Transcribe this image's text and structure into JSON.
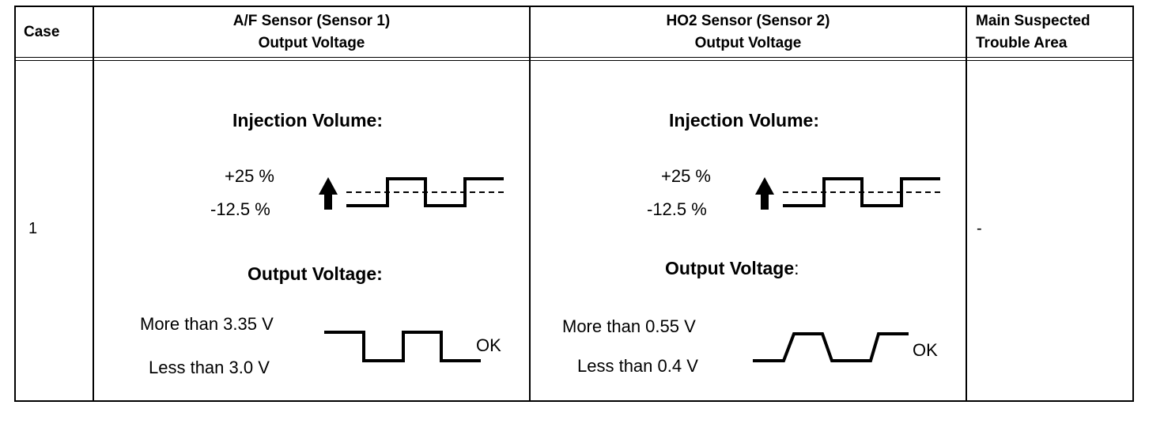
{
  "table": {
    "headers": {
      "case": "Case",
      "af_line1": "A/F Sensor (Sensor 1)",
      "af_line2": "Output Voltage",
      "ho2_line1": "HO2 Sensor (Sensor 2)",
      "ho2_line2": "Output Voltage",
      "area_line1": "Main Suspected",
      "area_line2": "Trouble Area"
    },
    "row": {
      "case": "1",
      "af": {
        "injection_title": "Injection Volume:",
        "inj_high": "+25 %",
        "inj_low": "-12.5 %",
        "output_title": "Output Voltage:",
        "volt_high": "More than 3.35 V",
        "volt_low": "Less than 3.0 V",
        "result": "OK"
      },
      "ho2": {
        "injection_title": "Injection Volume:",
        "inj_high": "+25 %",
        "inj_low": "-12.5 %",
        "output_title": "Output Voltage",
        "output_colon": ":",
        "volt_high": "More than 0.55 V",
        "volt_low": "Less than 0.4 V",
        "result": "OK"
      },
      "trouble_area": "-"
    }
  }
}
